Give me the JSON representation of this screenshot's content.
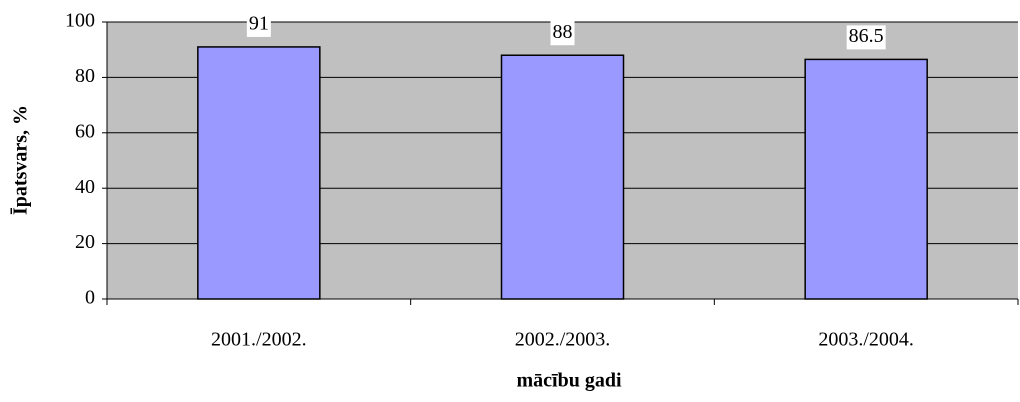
{
  "chart_data": {
    "type": "bar",
    "categories": [
      "2001./2002.",
      "2002./2003.",
      "2003./2004."
    ],
    "values": [
      91,
      88,
      86.5
    ],
    "color": "#9999ff",
    "plot_background": "#c0c0c0",
    "ylim": [
      0,
      100
    ],
    "yticks": [
      0,
      20,
      40,
      60,
      80,
      100
    ],
    "grid": true,
    "xlabel": "mācību gadi",
    "ylabel": "Īpatsvars, %"
  }
}
